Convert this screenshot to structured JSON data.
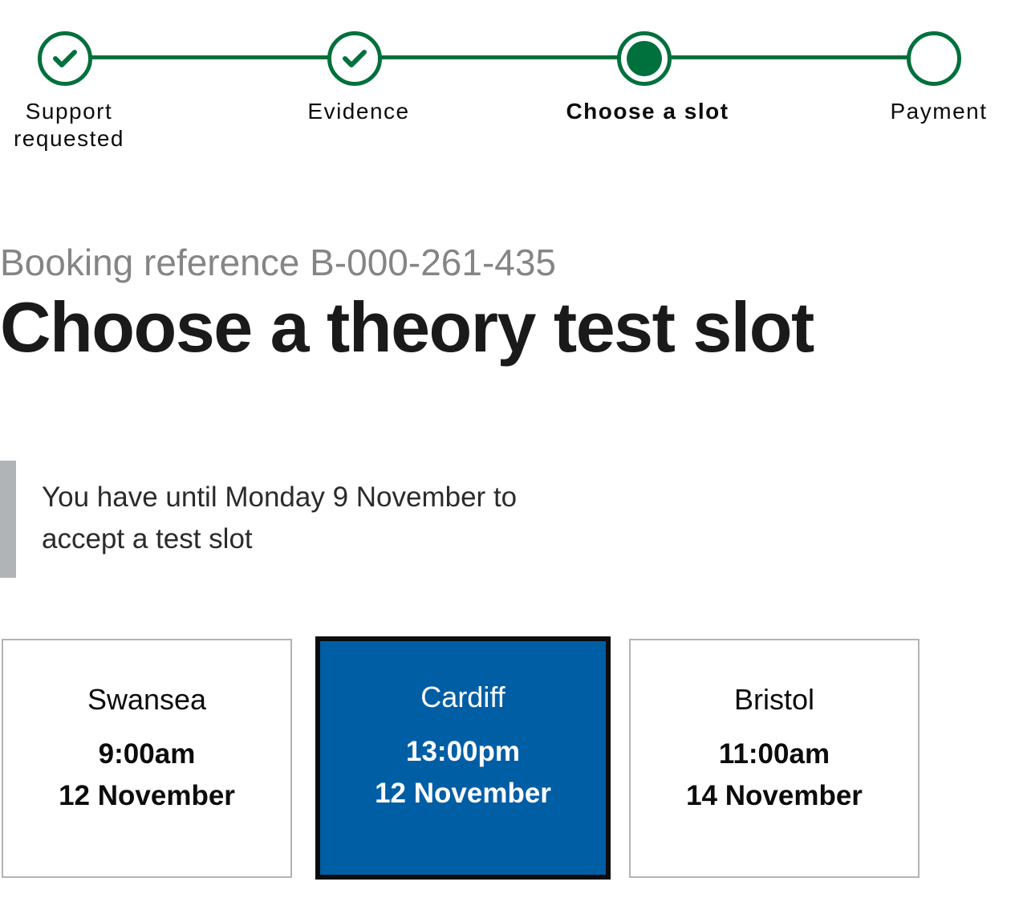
{
  "stepper": {
    "steps": [
      {
        "label": "Support requested",
        "state": "complete",
        "icon": "check-icon"
      },
      {
        "label": "Evidence",
        "state": "complete",
        "icon": "check-icon"
      },
      {
        "label": "Choose a slot",
        "state": "current",
        "icon": "current-step-dot-icon"
      },
      {
        "label": "Payment",
        "state": "incomplete",
        "icon": "empty-circle-icon"
      }
    ]
  },
  "page": {
    "caption": "Booking reference B-000-261-435",
    "title": "Choose a theory test slot"
  },
  "inset": {
    "text": "You have until Monday 9 November to accept a test slot"
  },
  "slots": [
    {
      "place": "Swansea",
      "time": "9:00am",
      "date": "12 November",
      "selected": false
    },
    {
      "place": "Cardiff",
      "time": "13:00pm",
      "date": "12 November",
      "selected": true
    },
    {
      "place": "Bristol",
      "time": "11:00am",
      "date": "14 November",
      "selected": false
    }
  ],
  "colors": {
    "progress_green": "#00703c",
    "selected_slot_blue": "#005ea5",
    "caption_grey": "#858585",
    "inset_border_grey": "#b1b4b6"
  }
}
